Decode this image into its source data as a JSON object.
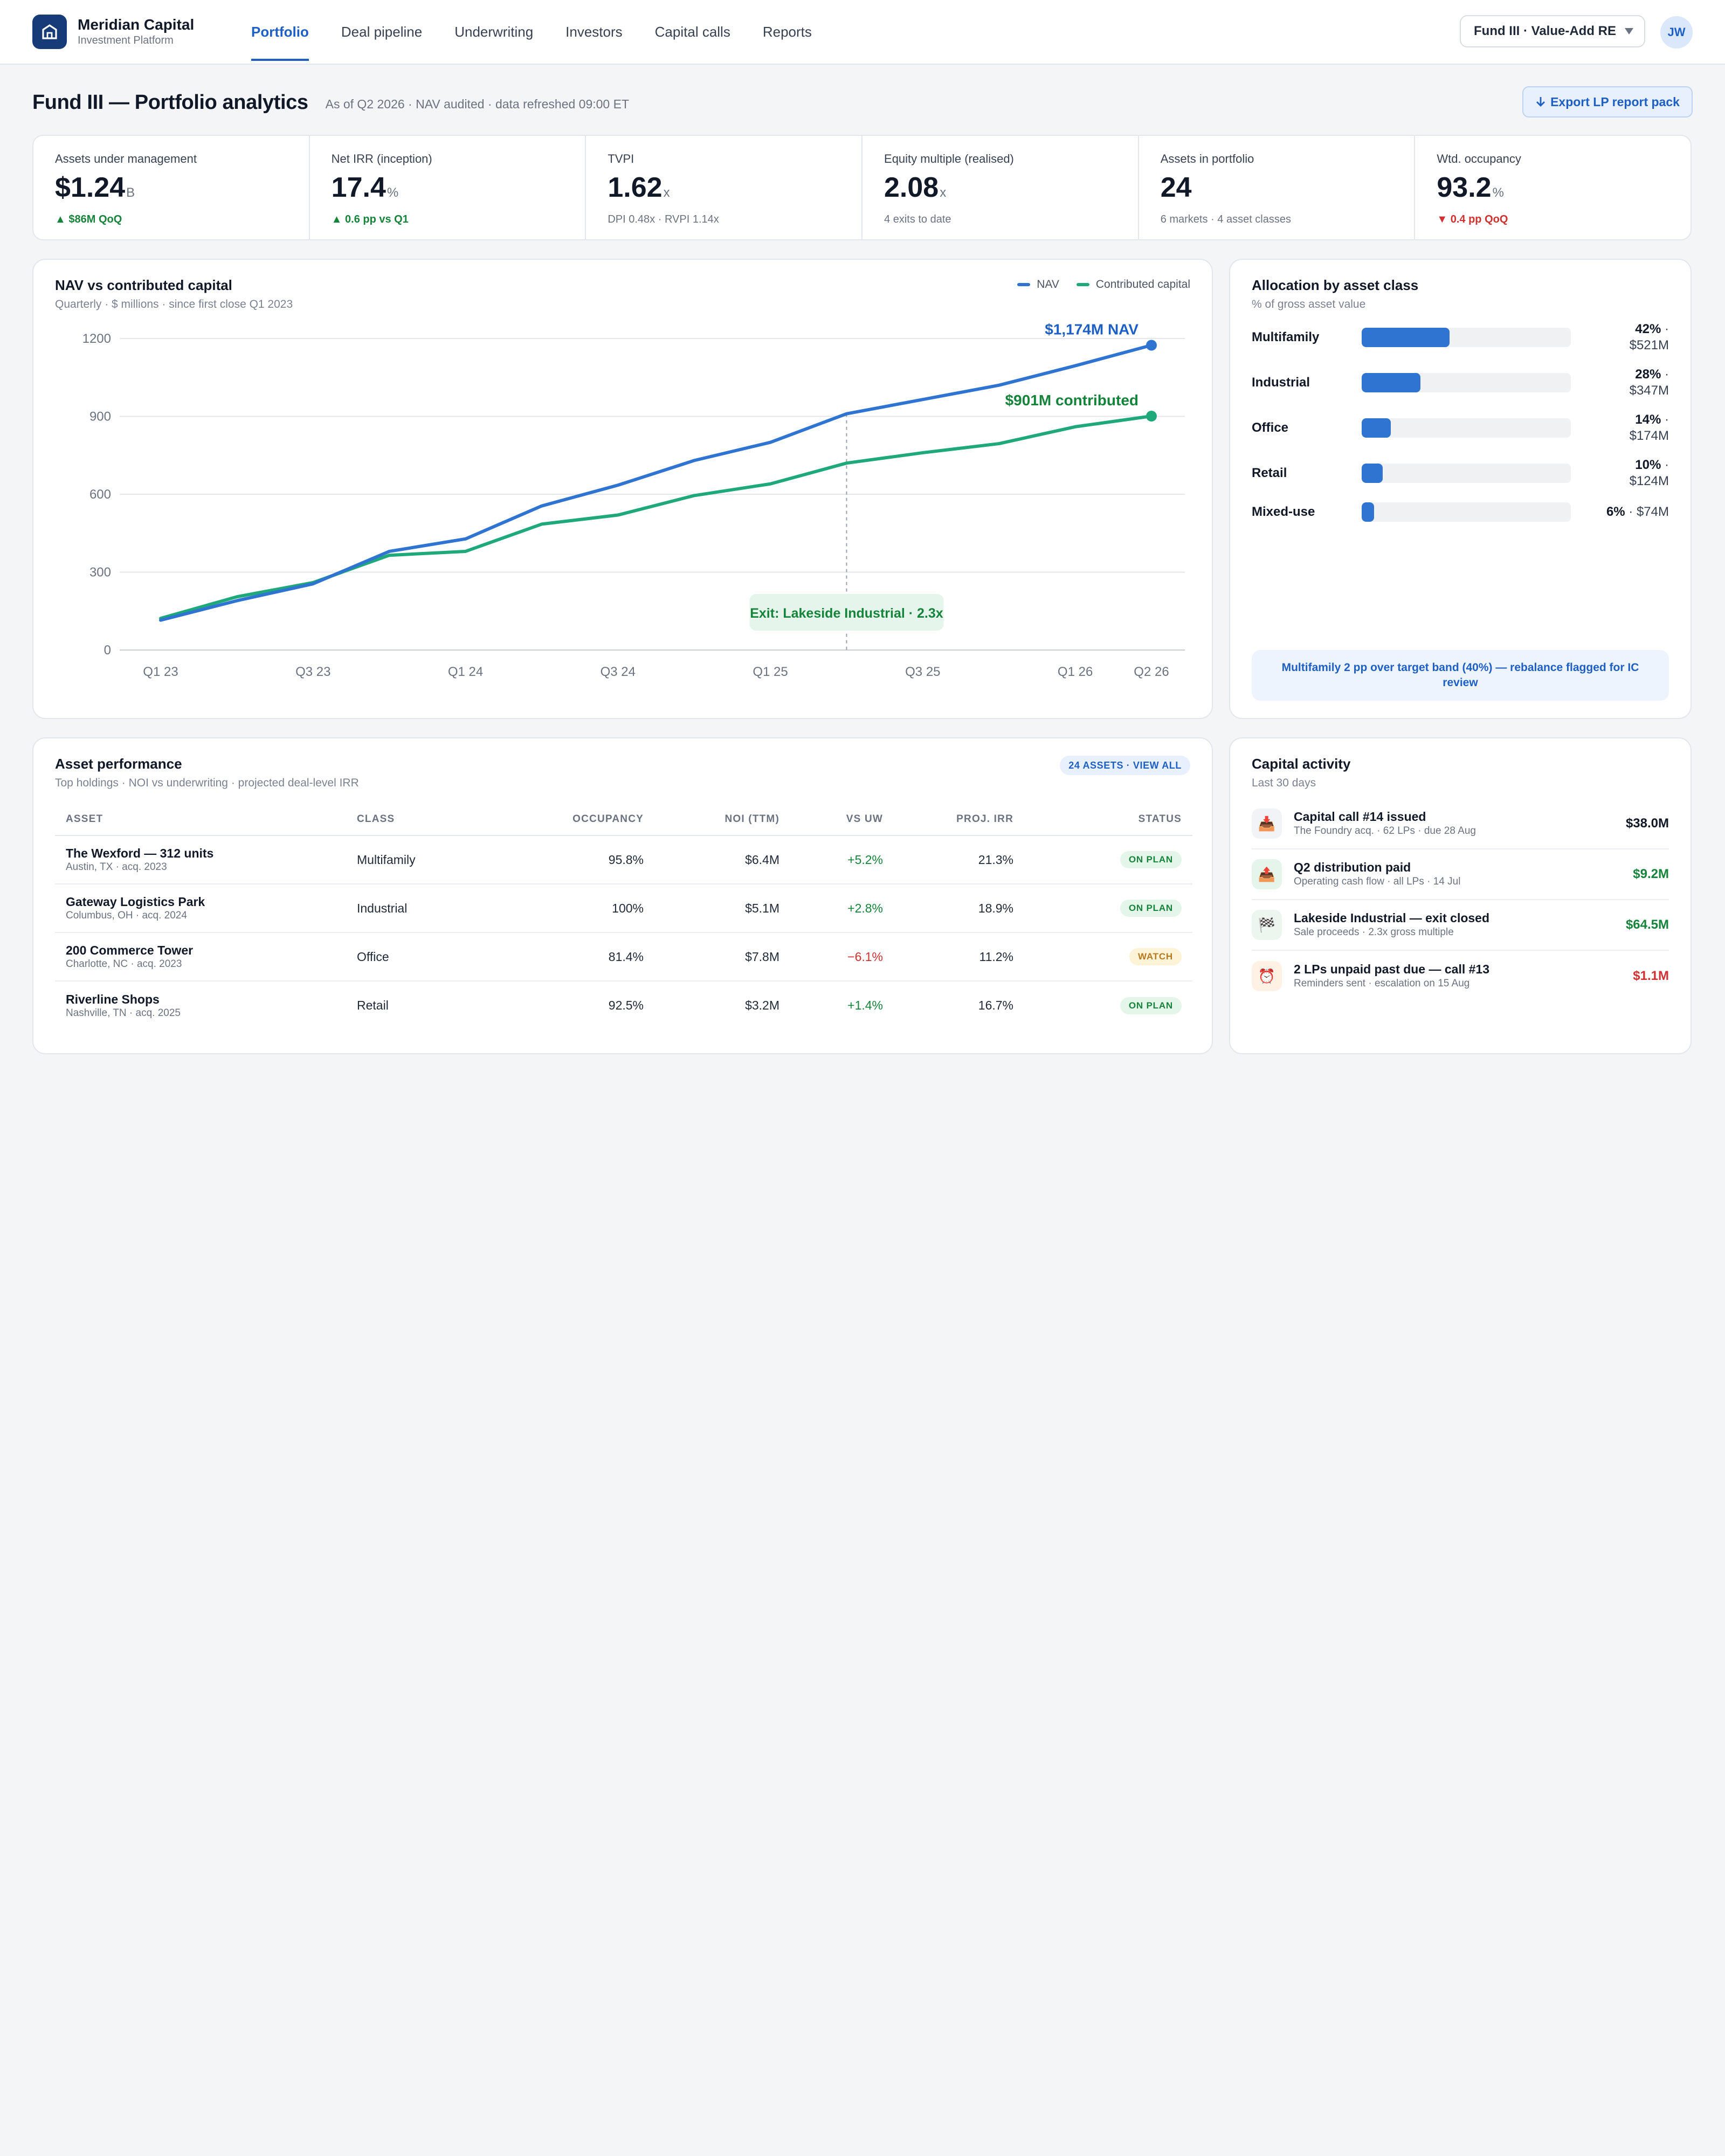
{
  "brand": {
    "name": "Meridian Capital",
    "subtitle": "Investment Platform"
  },
  "nav": [
    {
      "label": "Portfolio",
      "active": true
    },
    {
      "label": "Deal pipeline"
    },
    {
      "label": "Underwriting"
    },
    {
      "label": "Investors"
    },
    {
      "label": "Capital calls"
    },
    {
      "label": "Reports"
    }
  ],
  "fund_selector": {
    "value": "Fund III · Value-Add RE"
  },
  "user": {
    "initials": "JW"
  },
  "page": {
    "title": "Fund III — Portfolio analytics",
    "meta": "As of Q2 2026 · NAV audited · data refreshed 09:00 ET",
    "export_label": "Export LP report pack",
    "export_icon": "arrow-down-icon"
  },
  "kpis": [
    {
      "label": "Assets under management",
      "value": "$1.24",
      "unit": "B",
      "delta": "$86M QoQ",
      "trend": "up"
    },
    {
      "label": "Net IRR (inception)",
      "value": "17.4",
      "unit": "%",
      "delta": "0.6 pp vs Q1",
      "trend": "up"
    },
    {
      "label": "TVPI",
      "value": "1.62",
      "unit": "x",
      "delta": "DPI 0.48x · RVPI 1.14x",
      "trend": "none"
    },
    {
      "label": "Equity multiple (realised)",
      "value": "2.08",
      "unit": "x",
      "delta": "4 exits to date",
      "trend": "none"
    },
    {
      "label": "Assets in portfolio",
      "value": "24",
      "unit": "",
      "delta": "6 markets · 4 asset classes",
      "trend": "none"
    },
    {
      "label": "Wtd. occupancy",
      "value": "93.2",
      "unit": "%",
      "delta": "0.4 pp QoQ",
      "trend": "down"
    }
  ],
  "nav_chart": {
    "title": "NAV vs contributed capital",
    "subtitle": "Quarterly · $ millions · since first close Q1 2023",
    "colors": {
      "nav": "#2f74d0",
      "contributed": "#1fa97a"
    },
    "nav_end_label": "$1,174M NAV",
    "contributed_end_label": "$901M contributed",
    "annotation": "Exit: Lakeside Industrial · 2.3x"
  },
  "chart_data": {
    "type": "line",
    "x": [
      "Q1 23",
      "Q2 23",
      "Q3 23",
      "Q4 23",
      "Q1 24",
      "Q2 24",
      "Q3 24",
      "Q4 24",
      "Q1 25",
      "Q2 25",
      "Q3 25",
      "Q4 25",
      "Q1 26",
      "Q2 26"
    ],
    "tick_labels": [
      "Q1 23",
      "Q3 23",
      "Q1 24",
      "Q3 24",
      "Q1 25",
      "Q3 25",
      "Q1 26",
      "Q2 26"
    ],
    "series": [
      {
        "name": "NAV",
        "values": [
          115,
          190,
          255,
          380,
          428,
          555,
          635,
          730,
          800,
          910,
          965,
          1020,
          1095,
          1174
        ]
      },
      {
        "name": "Contributed capital",
        "values": [
          122,
          205,
          260,
          365,
          380,
          485,
          520,
          595,
          640,
          720,
          760,
          795,
          860,
          901
        ]
      }
    ],
    "ylim": [
      0,
      1200
    ],
    "yticks": [
      0,
      300,
      600,
      900,
      1200
    ],
    "grid": true,
    "legend": "top-right",
    "annotation_at": "Q2 25"
  },
  "allocation": {
    "title": "Allocation by asset class",
    "subtitle": "% of gross asset value",
    "items": [
      {
        "name": "Multifamily",
        "pct": "42%",
        "amount": "$521M",
        "share": 0.42
      },
      {
        "name": "Industrial",
        "pct": "28%",
        "amount": "$347M",
        "share": 0.28
      },
      {
        "name": "Office",
        "pct": "14%",
        "amount": "$174M",
        "share": 0.14
      },
      {
        "name": "Retail",
        "pct": "10%",
        "amount": "$124M",
        "share": 0.1
      },
      {
        "name": "Mixed-use",
        "pct": "6%",
        "amount": "$74M",
        "share": 0.06
      }
    ],
    "note": "Multifamily 2 pp over target band (40%) — rebalance flagged for IC review"
  },
  "assets": {
    "title": "Asset performance",
    "subtitle": "Top holdings · NOI vs underwriting · projected deal-level IRR",
    "view_all": "24 ASSETS · VIEW ALL",
    "columns": [
      "Asset",
      "Class",
      "Occupancy",
      "NOI (TTM)",
      "vs UW",
      "Proj. IRR",
      "Status"
    ],
    "rows": [
      {
        "name": "The Wexford — 312 units",
        "sub": "Austin, TX · acq. 2023",
        "class": "Multifamily",
        "occupancy": "95.8%",
        "noi": "$6.4M",
        "vs_uw": "+5.2%",
        "irr": "21.3%",
        "status": "ON PLAN"
      },
      {
        "name": "Gateway Logistics Park",
        "sub": "Columbus, OH · acq. 2024",
        "class": "Industrial",
        "occupancy": "100%",
        "noi": "$5.1M",
        "vs_uw": "+2.8%",
        "irr": "18.9%",
        "status": "ON PLAN"
      },
      {
        "name": "200 Commerce Tower",
        "sub": "Charlotte, NC · acq. 2023",
        "class": "Office",
        "occupancy": "81.4%",
        "noi": "$7.8M",
        "vs_uw": "−6.1%",
        "irr": "11.2%",
        "status": "WATCH"
      },
      {
        "name": "Riverline Shops",
        "sub": "Nashville, TN · acq. 2025",
        "class": "Retail",
        "occupancy": "92.5%",
        "noi": "$3.2M",
        "vs_uw": "+1.4%",
        "irr": "16.7%",
        "status": "ON PLAN"
      }
    ]
  },
  "activity": {
    "title": "Capital activity",
    "subtitle": "Last 30 days",
    "items": [
      {
        "title": "Capital call #14 issued",
        "sub": "The Foundry acq. · 62 LPs · due 28 Aug",
        "amount": "$38.0M",
        "icon": "inbox-tray-icon",
        "glyph": "📥",
        "tone": "neutral"
      },
      {
        "title": "Q2 distribution paid",
        "sub": "Operating cash flow · all LPs · 14 Jul",
        "amount": "$9.2M",
        "icon": "outbox-tray-icon",
        "glyph": "📤",
        "tone": "positive"
      },
      {
        "title": "Lakeside Industrial — exit closed",
        "sub": "Sale proceeds · 2.3x gross multiple",
        "amount": "$64.5M",
        "icon": "checkered-flag-icon",
        "glyph": "🏁",
        "tone": "positive"
      },
      {
        "title": "2 LPs unpaid past due — call #13",
        "sub": "Reminders sent · escalation on 15 Aug",
        "amount": "$1.1M",
        "icon": "alarm-clock-icon",
        "glyph": "⏰",
        "tone": "negative"
      }
    ]
  }
}
